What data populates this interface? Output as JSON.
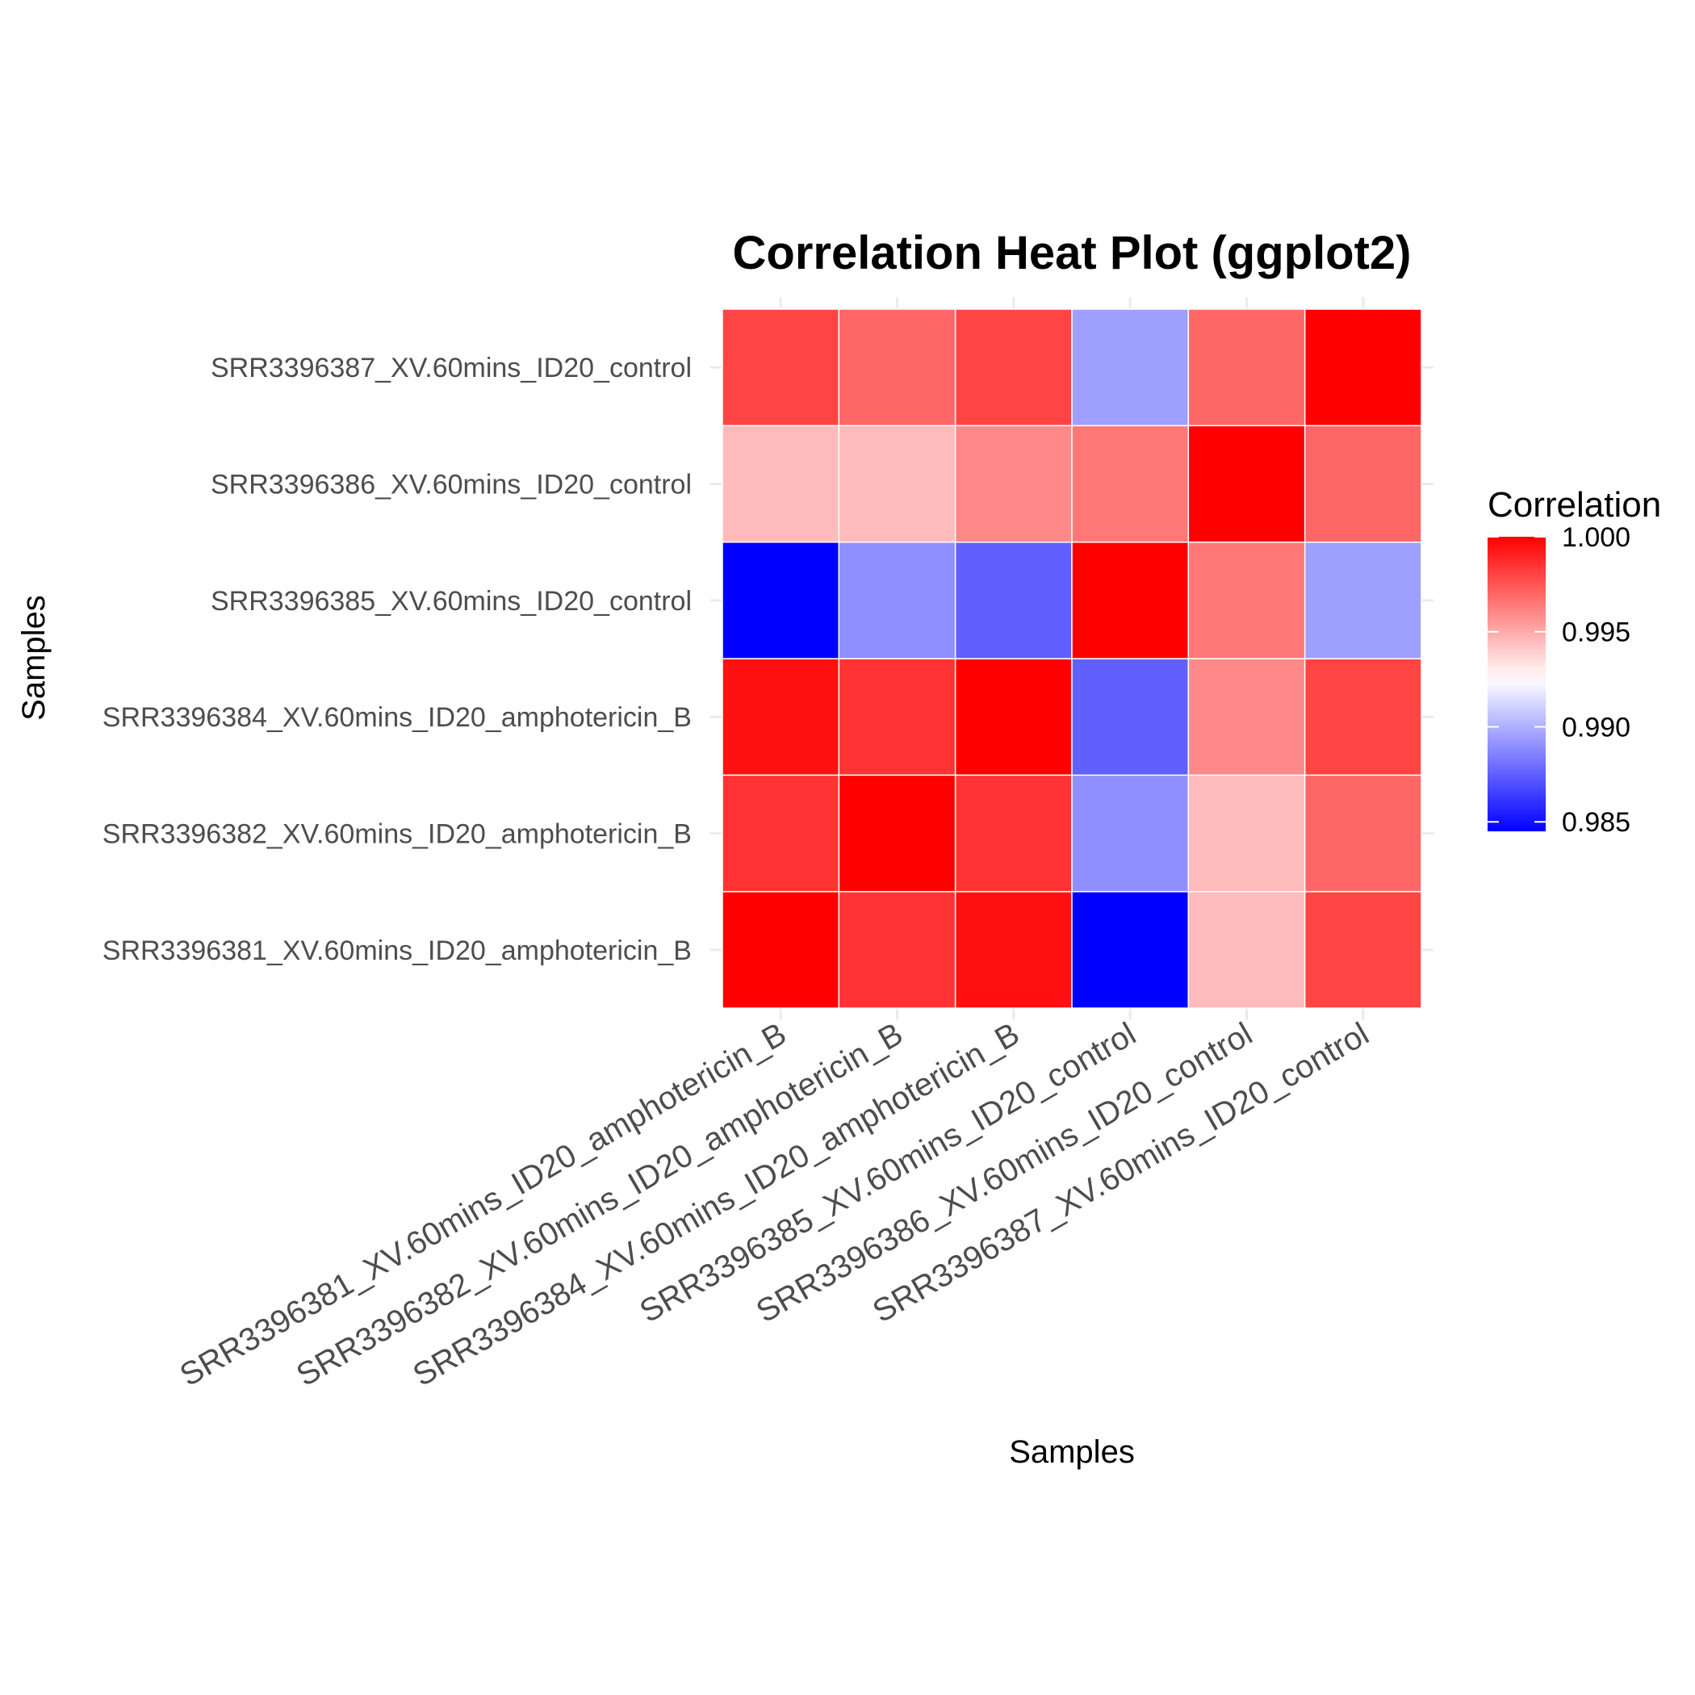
{
  "chart_data": {
    "type": "heatmap",
    "title": "Correlation Heat Plot (ggplot2)",
    "xlabel": "Samples",
    "ylabel": "Samples",
    "x_categories": [
      "SRR3396381_XV.60mins_ID20_amphotericin_B",
      "SRR3396382_XV.60mins_ID20_amphotericin_B",
      "SRR3396384_XV.60mins_ID20_amphotericin_B",
      "SRR3396385_XV.60mins_ID20_control",
      "SRR3396386_XV.60mins_ID20_control",
      "SRR3396387_XV.60mins_ID20_control"
    ],
    "y_categories": [
      "SRR3396381_XV.60mins_ID20_amphotericin_B",
      "SRR3396382_XV.60mins_ID20_amphotericin_B",
      "SRR3396384_XV.60mins_ID20_amphotericin_B",
      "SRR3396385_XV.60mins_ID20_control",
      "SRR3396386_XV.60mins_ID20_control",
      "SRR3396387_XV.60mins_ID20_control"
    ],
    "values": [
      [
        1.0,
        0.9985,
        0.9995,
        0.9845,
        0.9945,
        0.998
      ],
      [
        0.9985,
        1.0,
        0.9985,
        0.989,
        0.9945,
        0.997
      ],
      [
        0.9995,
        0.9985,
        1.0,
        0.9875,
        0.996,
        0.998
      ],
      [
        0.9845,
        0.989,
        0.9875,
        1.0,
        0.9965,
        0.9895
      ],
      [
        0.9945,
        0.9945,
        0.996,
        0.9965,
        1.0,
        0.997
      ],
      [
        0.998,
        0.997,
        0.998,
        0.9895,
        0.997,
        1.0
      ]
    ],
    "color_scale": {
      "low": "#0000FF",
      "mid": "#FFFFFF",
      "high": "#FF0000",
      "limits": [
        0.9845,
        1.0
      ],
      "midpoint": 0.9925
    },
    "legend": {
      "title": "Correlation",
      "breaks": [
        1.0,
        0.995,
        0.99,
        0.985
      ],
      "labels": [
        "1.000",
        "0.995",
        "0.990",
        "0.985"
      ],
      "position": "right"
    },
    "grid": true
  }
}
